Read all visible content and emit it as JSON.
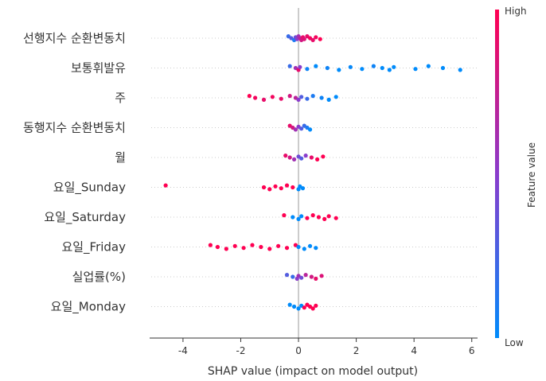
{
  "chart_data": {
    "type": "scatter",
    "subtype": "shap-beeswarm",
    "xlabel": "SHAP value (impact on model output)",
    "xlim": [
      -5.1,
      6.2
    ],
    "xticks": [
      -4,
      -2,
      0,
      2,
      4,
      6
    ],
    "features": [
      {
        "name": "선행지수 순환변동치",
        "points": [
          {
            "x": -0.35,
            "f": 0.2
          },
          {
            "x": -0.25,
            "f": 0.3
          },
          {
            "x": -0.15,
            "f": 0.1
          },
          {
            "x": -0.1,
            "f": 0.4
          },
          {
            "x": -0.05,
            "f": 0.5
          },
          {
            "x": 0.0,
            "f": 0.6
          },
          {
            "x": 0.05,
            "f": 0.7
          },
          {
            "x": 0.1,
            "f": 0.8
          },
          {
            "x": 0.15,
            "f": 0.9
          },
          {
            "x": 0.2,
            "f": 0.85
          },
          {
            "x": 0.3,
            "f": 0.9
          },
          {
            "x": 0.4,
            "f": 0.95
          },
          {
            "x": 0.5,
            "f": 0.9
          },
          {
            "x": 0.6,
            "f": 0.95
          },
          {
            "x": 0.75,
            "f": 1.0
          }
        ]
      },
      {
        "name": "보통휘발유",
        "points": [
          {
            "x": -0.3,
            "f": 0.2
          },
          {
            "x": -0.1,
            "f": 0.6
          },
          {
            "x": 0.0,
            "f": 0.9
          },
          {
            "x": 0.05,
            "f": 0.5
          },
          {
            "x": 0.3,
            "f": 0.05
          },
          {
            "x": 0.6,
            "f": 0.0
          },
          {
            "x": 1.0,
            "f": 0.05
          },
          {
            "x": 1.4,
            "f": 0.0
          },
          {
            "x": 1.8,
            "f": 0.02
          },
          {
            "x": 2.2,
            "f": 0.0
          },
          {
            "x": 2.6,
            "f": 0.05
          },
          {
            "x": 2.9,
            "f": 0.0
          },
          {
            "x": 3.15,
            "f": 0.0
          },
          {
            "x": 3.3,
            "f": 0.0
          },
          {
            "x": 4.05,
            "f": 0.0
          },
          {
            "x": 4.5,
            "f": 0.0
          },
          {
            "x": 5.0,
            "f": 0.0
          },
          {
            "x": 5.6,
            "f": 0.0
          }
        ]
      },
      {
        "name": "주",
        "points": [
          {
            "x": -1.7,
            "f": 1.0
          },
          {
            "x": -1.5,
            "f": 0.95
          },
          {
            "x": -1.2,
            "f": 0.9
          },
          {
            "x": -0.9,
            "f": 0.95
          },
          {
            "x": -0.6,
            "f": 0.9
          },
          {
            "x": -0.3,
            "f": 0.8
          },
          {
            "x": -0.1,
            "f": 0.7
          },
          {
            "x": 0.0,
            "f": 0.5
          },
          {
            "x": 0.1,
            "f": 0.3
          },
          {
            "x": 0.3,
            "f": 0.2
          },
          {
            "x": 0.5,
            "f": 0.1
          },
          {
            "x": 0.8,
            "f": 0.05
          },
          {
            "x": 1.05,
            "f": 0.0
          },
          {
            "x": 1.3,
            "f": 0.0
          }
        ]
      },
      {
        "name": "동행지수 순환변동치",
        "points": [
          {
            "x": -0.3,
            "f": 0.9
          },
          {
            "x": -0.2,
            "f": 0.8
          },
          {
            "x": -0.1,
            "f": 0.6
          },
          {
            "x": 0.0,
            "f": 0.5
          },
          {
            "x": 0.1,
            "f": 0.3
          },
          {
            "x": 0.2,
            "f": 0.2
          },
          {
            "x": 0.3,
            "f": 0.1
          },
          {
            "x": 0.4,
            "f": 0.0
          }
        ]
      },
      {
        "name": "월",
        "points": [
          {
            "x": -0.45,
            "f": 0.9
          },
          {
            "x": -0.3,
            "f": 0.8
          },
          {
            "x": -0.15,
            "f": 0.6
          },
          {
            "x": 0.0,
            "f": 0.4
          },
          {
            "x": 0.1,
            "f": 0.3
          },
          {
            "x": 0.25,
            "f": 0.5
          },
          {
            "x": 0.45,
            "f": 0.9
          },
          {
            "x": 0.65,
            "f": 1.0
          },
          {
            "x": 0.85,
            "f": 1.0
          }
        ]
      },
      {
        "name": "요일_Sunday",
        "points": [
          {
            "x": -4.6,
            "f": 1.0
          },
          {
            "x": -1.2,
            "f": 1.0
          },
          {
            "x": -1.0,
            "f": 1.0
          },
          {
            "x": -0.8,
            "f": 1.0
          },
          {
            "x": -0.6,
            "f": 1.0
          },
          {
            "x": -0.4,
            "f": 1.0
          },
          {
            "x": -0.2,
            "f": 1.0
          },
          {
            "x": 0.0,
            "f": 0.0
          },
          {
            "x": 0.05,
            "f": 0.0
          },
          {
            "x": 0.15,
            "f": 0.0
          }
        ]
      },
      {
        "name": "요일_Saturday",
        "points": [
          {
            "x": -0.5,
            "f": 1.0
          },
          {
            "x": -0.2,
            "f": 0.0
          },
          {
            "x": 0.0,
            "f": 0.0
          },
          {
            "x": 0.1,
            "f": 0.0
          },
          {
            "x": 0.3,
            "f": 1.0
          },
          {
            "x": 0.5,
            "f": 1.0
          },
          {
            "x": 0.7,
            "f": 1.0
          },
          {
            "x": 0.9,
            "f": 1.0
          },
          {
            "x": 1.05,
            "f": 1.0
          },
          {
            "x": 1.3,
            "f": 1.0
          }
        ]
      },
      {
        "name": "요일_Friday",
        "points": [
          {
            "x": -3.05,
            "f": 1.0
          },
          {
            "x": -2.8,
            "f": 1.0
          },
          {
            "x": -2.5,
            "f": 1.0
          },
          {
            "x": -2.2,
            "f": 1.0
          },
          {
            "x": -1.9,
            "f": 1.0
          },
          {
            "x": -1.6,
            "f": 1.0
          },
          {
            "x": -1.3,
            "f": 1.0
          },
          {
            "x": -1.0,
            "f": 1.0
          },
          {
            "x": -0.7,
            "f": 1.0
          },
          {
            "x": -0.4,
            "f": 1.0
          },
          {
            "x": -0.1,
            "f": 1.0
          },
          {
            "x": 0.0,
            "f": 0.0
          },
          {
            "x": 0.2,
            "f": 0.0
          },
          {
            "x": 0.4,
            "f": 0.0
          },
          {
            "x": 0.6,
            "f": 0.0
          }
        ]
      },
      {
        "name": "실업률(%)",
        "points": [
          {
            "x": -0.4,
            "f": 0.3
          },
          {
            "x": -0.2,
            "f": 0.2
          },
          {
            "x": -0.05,
            "f": 0.5
          },
          {
            "x": 0.0,
            "f": 0.6
          },
          {
            "x": 0.1,
            "f": 0.4
          },
          {
            "x": 0.25,
            "f": 0.7
          },
          {
            "x": 0.45,
            "f": 0.8
          },
          {
            "x": 0.6,
            "f": 0.9
          },
          {
            "x": 0.8,
            "f": 0.85
          }
        ]
      },
      {
        "name": "요일_Monday",
        "points": [
          {
            "x": -0.3,
            "f": 0.0
          },
          {
            "x": -0.15,
            "f": 0.0
          },
          {
            "x": 0.0,
            "f": 0.0
          },
          {
            "x": 0.1,
            "f": 0.0
          },
          {
            "x": 0.2,
            "f": 1.0
          },
          {
            "x": 0.3,
            "f": 1.0
          },
          {
            "x": 0.4,
            "f": 1.0
          },
          {
            "x": 0.5,
            "f": 1.0
          },
          {
            "x": 0.6,
            "f": 1.0
          }
        ]
      }
    ],
    "colorbar": {
      "label": "Feature value",
      "high_label": "High",
      "low_label": "Low",
      "high_color": "#ff0052",
      "low_color": "#008bfb"
    },
    "grid": false,
    "zero_line": true
  }
}
